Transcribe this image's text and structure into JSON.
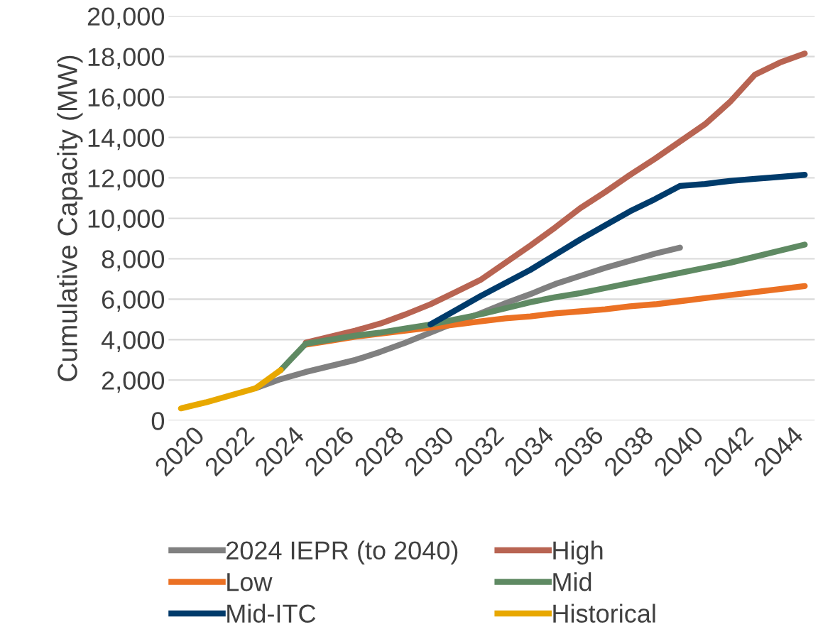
{
  "chart_data": {
    "type": "line",
    "ylabel": "Cumulative Capacity (MW)",
    "xlim": [
      2019.5,
      2045.4
    ],
    "xticks": [
      2020,
      2022,
      2024,
      2026,
      2028,
      2030,
      2032,
      2034,
      2036,
      2038,
      2040,
      2042,
      2044
    ],
    "ylim": [
      0,
      20000
    ],
    "yticks": [
      0,
      {
        "value": 2000,
        "label": "2,000"
      },
      {
        "value": 4000,
        "label": "4,000"
      },
      {
        "value": 6000,
        "label": "6,000"
      },
      {
        "value": 8000,
        "label": "8,000"
      },
      {
        "value": 10000,
        "label": "10,000"
      },
      {
        "value": 12000,
        "label": "12,000"
      },
      {
        "value": 14000,
        "label": "14,000"
      },
      {
        "value": 16000,
        "label": "16,000"
      },
      {
        "value": 18000,
        "label": "18,000"
      },
      {
        "value": 20000,
        "label": "20,000"
      }
    ],
    "grid": "y",
    "legend": "bottom",
    "marker": "none",
    "line_style": "solid",
    "series": [
      {
        "name": "2024 IEPR (to 2040)",
        "color": "#808080",
        "x": [
          2023,
          2024,
          2025,
          2026,
          2027,
          2028,
          2029,
          2030,
          2031,
          2032,
          2033,
          2034,
          2035,
          2036,
          2037,
          2038,
          2039,
          2040
        ],
        "values": [
          1600,
          2050,
          2400,
          2700,
          3000,
          3400,
          3850,
          4350,
          4850,
          5300,
          5800,
          6250,
          6750,
          7150,
          7550,
          7900,
          8250,
          8550
        ]
      },
      {
        "name": "High",
        "color": "#b86452",
        "x": [
          2025,
          2026,
          2027,
          2028,
          2029,
          2030,
          2031,
          2032,
          2033,
          2034,
          2035,
          2036,
          2037,
          2038,
          2039,
          2040,
          2041,
          2042,
          2043,
          2044,
          2045
        ],
        "values": [
          3850,
          4150,
          4450,
          4800,
          5250,
          5750,
          6350,
          6950,
          7800,
          8650,
          9550,
          10500,
          11300,
          12150,
          12950,
          13800,
          14650,
          15750,
          17100,
          17700,
          18150
        ]
      },
      {
        "name": "Low",
        "color": "#eb7124",
        "x": [
          2025,
          2026,
          2027,
          2028,
          2029,
          2030,
          2031,
          2032,
          2033,
          2034,
          2035,
          2036,
          2037,
          2038,
          2039,
          2040,
          2041,
          2042,
          2043,
          2044,
          2045
        ],
        "values": [
          3750,
          3950,
          4150,
          4300,
          4450,
          4600,
          4750,
          4900,
          5050,
          5150,
          5300,
          5400,
          5500,
          5650,
          5750,
          5900,
          6050,
          6200,
          6350,
          6500,
          6650
        ]
      },
      {
        "name": "Mid",
        "color": "#5f8a63",
        "x": [
          2024,
          2025,
          2026,
          2027,
          2028,
          2029,
          2030,
          2031,
          2032,
          2033,
          2034,
          2035,
          2036,
          2037,
          2038,
          2039,
          2040,
          2041,
          2042,
          2043,
          2044,
          2045
        ],
        "values": [
          2500,
          3800,
          4000,
          4200,
          4350,
          4550,
          4750,
          5000,
          5250,
          5550,
          5850,
          6100,
          6300,
          6550,
          6800,
          7050,
          7300,
          7550,
          7800,
          8100,
          8400,
          8700
        ]
      },
      {
        "name": "Mid-ITC",
        "color": "#003b6b",
        "x": [
          2030,
          2031,
          2032,
          2033,
          2034,
          2035,
          2036,
          2037,
          2038,
          2039,
          2040,
          2041,
          2042,
          2043,
          2044,
          2045
        ],
        "values": [
          4750,
          5450,
          6150,
          6800,
          7450,
          8200,
          8950,
          9650,
          10350,
          10950,
          11600,
          11700,
          11850,
          11950,
          12050,
          12150
        ]
      },
      {
        "name": "Historical",
        "color": "#e8a800",
        "x": [
          2020,
          2021,
          2022,
          2023,
          2024
        ],
        "values": [
          600,
          900,
          1250,
          1600,
          2500
        ]
      }
    ]
  }
}
